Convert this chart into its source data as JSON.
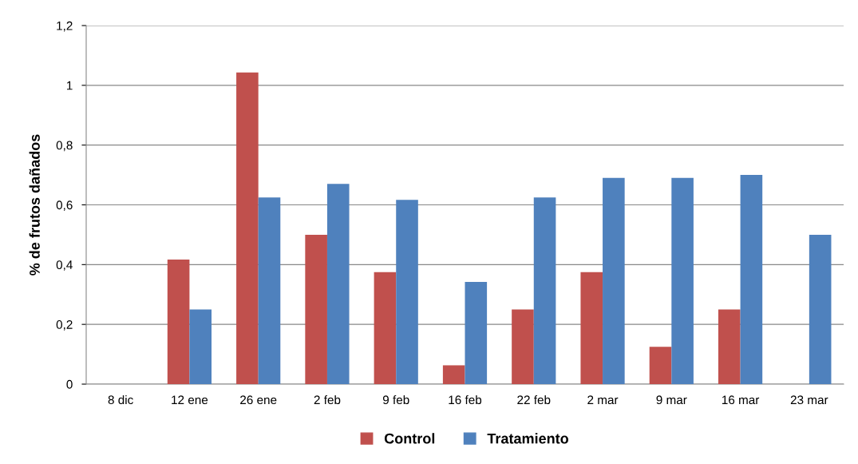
{
  "chart_data": {
    "type": "bar",
    "ylabel": "% de frutos dañados",
    "categories": [
      "8 dic",
      "12 ene",
      "26 ene",
      "2 feb",
      "9 feb",
      "16 feb",
      "22 feb",
      "2 mar",
      "9 mar",
      "16 mar",
      "23 mar"
    ],
    "series": [
      {
        "name": "Control",
        "color": "#c0504d",
        "values": [
          0,
          0.417,
          1.043,
          0.5,
          0.375,
          0.063,
          0.25,
          0.375,
          0.125,
          0.25,
          0
        ]
      },
      {
        "name": "Tratamiento",
        "color": "#4f81bd",
        "values": [
          0,
          0.25,
          0.625,
          0.67,
          0.617,
          0.342,
          0.625,
          0.69,
          0.69,
          0.7,
          0.5
        ]
      }
    ],
    "ylim": [
      0,
      1.2
    ],
    "yticks": [
      0,
      {
        "value": 0.2,
        "label": "0,2"
      },
      {
        "value": 0.4,
        "label": "0,4"
      },
      {
        "value": 0.6,
        "label": "0,6"
      },
      {
        "value": 0.8,
        "label": "0,8"
      },
      1,
      {
        "value": 1.2,
        "label": "1,2"
      }
    ],
    "grid": "y",
    "legend": "bottom"
  }
}
